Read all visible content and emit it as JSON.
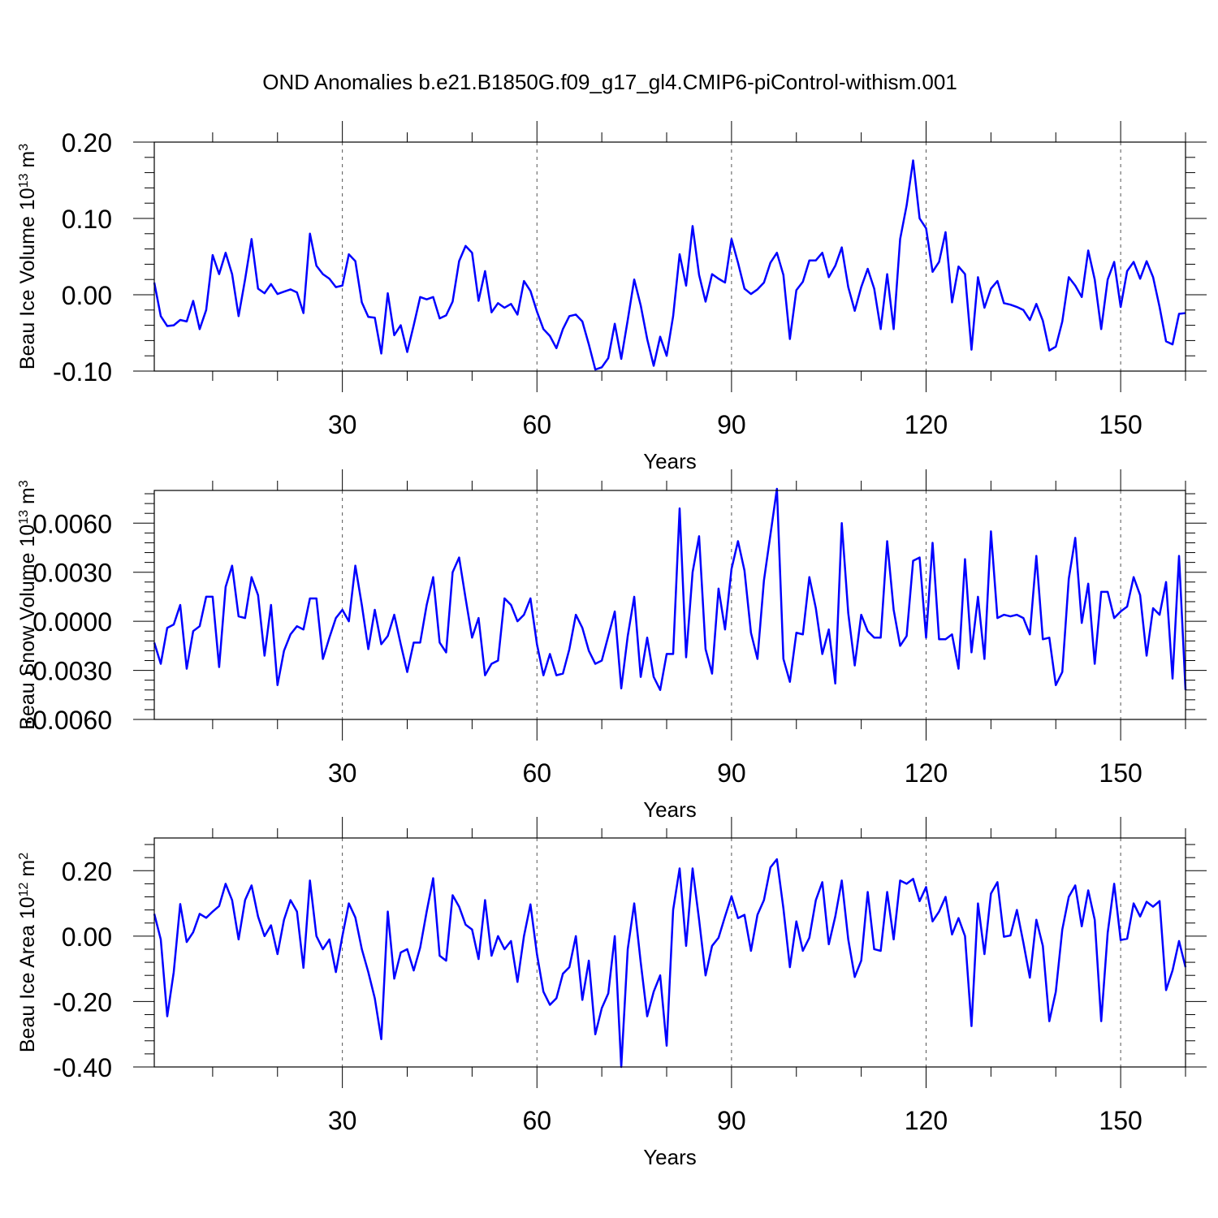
{
  "title": "OND Anomalies b.e21.B1850G.f09_g17_gl4.CMIP6-piControl-withism.001",
  "line_color": "#0000ff",
  "chart_data": [
    {
      "type": "line",
      "ylabel": "Beau Ice Volume 10",
      "ylabel_sup": "13",
      "ylabel_unit": "m",
      "ylabel_unit_sup": "3",
      "xlabel": "Years",
      "xticks": [
        30,
        60,
        90,
        120,
        150
      ],
      "xtick_labels": [
        "30",
        "60",
        "90",
        "120",
        "150"
      ],
      "xlim": [
        1,
        160
      ],
      "ylim": [
        -0.1,
        0.2
      ],
      "yticks": [
        -0.1,
        0.0,
        0.1,
        0.2
      ],
      "ytick_labels": [
        "-0.10",
        "0.00",
        "0.10",
        "0.20"
      ],
      "grid": "vertical dashed at major x ticks",
      "x_start": 1,
      "series": [
        {
          "values": [
            0.016,
            -0.028,
            -0.041,
            -0.04,
            -0.033,
            -0.035,
            -0.008,
            -0.045,
            -0.02,
            0.052,
            0.027,
            0.055,
            0.027,
            -0.028,
            0.02,
            0.073,
            0.008,
            0.002,
            0.014,
            0.001,
            0.004,
            0.007,
            0.003,
            -0.024,
            0.08,
            0.038,
            0.027,
            0.021,
            0.01,
            0.012,
            0.053,
            0.044,
            -0.01,
            -0.029,
            -0.03,
            -0.077,
            0.002,
            -0.053,
            -0.04,
            -0.075,
            -0.04,
            -0.003,
            -0.006,
            -0.003,
            -0.031,
            -0.027,
            -0.009,
            0.044,
            0.064,
            0.055,
            -0.008,
            0.031,
            -0.023,
            -0.011,
            -0.017,
            -0.012,
            -0.026,
            0.018,
            0.005,
            -0.022,
            -0.045,
            -0.054,
            -0.07,
            -0.045,
            -0.028,
            -0.026,
            -0.035,
            -0.065,
            -0.098,
            -0.095,
            -0.083,
            -0.038,
            -0.084,
            -0.033,
            0.02,
            -0.014,
            -0.058,
            -0.093,
            -0.055,
            -0.08,
            -0.028,
            0.053,
            0.012,
            0.09,
            0.026,
            -0.009,
            0.027,
            0.021,
            0.016,
            0.073,
            0.042,
            0.008,
            0.001,
            0.007,
            0.016,
            0.042,
            0.055,
            0.026,
            -0.058,
            0.006,
            0.017,
            0.045,
            0.045,
            0.055,
            0.023,
            0.038,
            0.062,
            0.01,
            -0.021,
            0.01,
            0.034,
            0.008,
            -0.045,
            0.027,
            -0.045,
            0.073,
            0.117,
            0.176,
            0.1,
            0.087,
            0.03,
            0.043,
            0.082,
            -0.01,
            0.037,
            0.027,
            -0.072,
            0.023,
            -0.017,
            0.008,
            0.018,
            -0.011,
            -0.013,
            -0.016,
            -0.02,
            -0.033,
            -0.012,
            -0.034,
            -0.073,
            -0.068,
            -0.035,
            0.023,
            0.012,
            -0.003,
            0.058,
            0.02,
            -0.045,
            0.02,
            0.043,
            -0.016,
            0.031,
            0.043,
            0.021,
            0.044,
            0.023,
            -0.016,
            -0.061,
            -0.065,
            -0.025,
            -0.024
          ]
        }
      ]
    },
    {
      "type": "line",
      "ylabel": "Beau Snow Volume 10",
      "ylabel_sup": "13",
      "ylabel_unit": "m",
      "ylabel_unit_sup": "3",
      "xlabel": "Years",
      "xticks": [
        30,
        60,
        90,
        120,
        150
      ],
      "xtick_labels": [
        "30",
        "60",
        "90",
        "120",
        "150"
      ],
      "xlim": [
        1,
        160
      ],
      "ylim": [
        -0.006,
        0.008
      ],
      "yticks": [
        -0.006,
        -0.003,
        0.0,
        0.003,
        0.006
      ],
      "ytick_labels": [
        "-0.0060",
        "-0.0030",
        "0.0000",
        "0.0030",
        "0.0060"
      ],
      "grid": "vertical dashed at major x ticks",
      "x_start": 1,
      "series": [
        {
          "values": [
            -0.0013,
            -0.0026,
            -0.0004,
            -0.0002,
            0.001,
            -0.0029,
            -0.0006,
            -0.0003,
            0.0015,
            0.0015,
            -0.0028,
            0.0021,
            0.0034,
            0.0003,
            0.0002,
            0.0027,
            0.0016,
            -0.0021,
            0.001,
            -0.0039,
            -0.0018,
            -0.0008,
            -0.0003,
            -0.0005,
            0.0014,
            0.0014,
            -0.0023,
            -0.001,
            0.0002,
            0.0007,
            0.0,
            0.0034,
            0.001,
            -0.0017,
            0.0007,
            -0.0014,
            -0.0009,
            0.0004,
            -0.0014,
            -0.0031,
            -0.0013,
            -0.0013,
            0.001,
            0.0027,
            -0.0013,
            -0.0019,
            0.003,
            0.0039,
            0.0014,
            -0.001,
            0.0002,
            -0.0033,
            -0.0026,
            -0.0024,
            0.0014,
            0.001,
            0.0,
            0.0004,
            0.0014,
            -0.0014,
            -0.0033,
            -0.002,
            -0.0033,
            -0.0032,
            -0.0017,
            0.0004,
            -0.0004,
            -0.0018,
            -0.0026,
            -0.0024,
            -0.0009,
            0.0006,
            -0.0041,
            -0.0009,
            0.0015,
            -0.0034,
            -0.001,
            -0.0034,
            -0.0042,
            -0.002,
            -0.002,
            0.0069,
            -0.0022,
            0.003,
            0.0052,
            -0.0017,
            -0.0032,
            0.002,
            -0.0005,
            0.0032,
            0.0049,
            0.0031,
            -0.0007,
            -0.0023,
            0.0025,
            0.0053,
            0.0081,
            -0.0023,
            -0.0037,
            -0.0007,
            -0.0008,
            0.0027,
            0.0008,
            -0.002,
            -0.0005,
            -0.0038,
            0.006,
            0.0005,
            -0.0027,
            0.0004,
            -0.0006,
            -0.001,
            -0.001,
            0.0049,
            0.0007,
            -0.0015,
            -0.0009,
            0.0037,
            0.0039,
            -0.001,
            0.0048,
            -0.0011,
            -0.0011,
            -0.0008,
            -0.0029,
            0.0038,
            -0.0019,
            0.0015,
            -0.0023,
            0.0055,
            0.0002,
            0.0004,
            0.0003,
            0.0004,
            0.0002,
            -0.0008,
            0.004,
            -0.0011,
            -0.001,
            -0.0039,
            -0.0031,
            0.0026,
            0.0051,
            -0.0001,
            0.0023,
            -0.0026,
            0.0018,
            0.0018,
            0.0002,
            0.0006,
            0.0009,
            0.0027,
            0.0016,
            -0.0021,
            0.0008,
            0.0004,
            0.0024,
            -0.0035,
            0.004,
            -0.0042
          ]
        }
      ]
    },
    {
      "type": "line",
      "ylabel": "Beau Ice Area 10",
      "ylabel_sup": "12",
      "ylabel_unit": "m",
      "ylabel_unit_sup": "2",
      "xlabel": "Years",
      "xticks": [
        30,
        60,
        90,
        120,
        150
      ],
      "xtick_labels": [
        "30",
        "60",
        "90",
        "120",
        "150"
      ],
      "xlim": [
        1,
        160
      ],
      "ylim": [
        -0.4,
        0.3
      ],
      "yticks": [
        -0.4,
        -0.2,
        0.0,
        0.2
      ],
      "ytick_labels": [
        "-0.40",
        "-0.20",
        "0.00",
        "0.20"
      ],
      "grid": "vertical dashed at major x ticks",
      "x_start": 1,
      "series": [
        {
          "values": [
            0.068,
            -0.01,
            -0.245,
            -0.11,
            0.098,
            -0.018,
            0.012,
            0.068,
            0.056,
            0.075,
            0.092,
            0.16,
            0.11,
            -0.01,
            0.11,
            0.155,
            0.06,
            0.0,
            0.033,
            -0.055,
            0.05,
            0.11,
            0.075,
            -0.097,
            0.17,
            0.0,
            -0.04,
            -0.01,
            -0.11,
            0.0,
            0.1,
            0.057,
            -0.04,
            -0.11,
            -0.19,
            -0.315,
            0.075,
            -0.13,
            -0.05,
            -0.04,
            -0.105,
            -0.035,
            0.075,
            0.177,
            -0.06,
            -0.075,
            0.125,
            0.09,
            0.035,
            0.02,
            -0.07,
            0.11,
            -0.06,
            0.0,
            -0.04,
            -0.015,
            -0.14,
            0.0,
            0.097,
            -0.055,
            -0.17,
            -0.21,
            -0.19,
            -0.115,
            -0.095,
            0.0,
            -0.195,
            -0.075,
            -0.3,
            -0.22,
            -0.175,
            0.0,
            -0.4,
            -0.04,
            0.1,
            -0.08,
            -0.245,
            -0.17,
            -0.12,
            -0.335,
            0.08,
            0.207,
            -0.03,
            0.207,
            0.05,
            -0.12,
            -0.03,
            -0.005,
            0.06,
            0.122,
            0.055,
            0.065,
            -0.045,
            0.065,
            0.11,
            0.21,
            0.235,
            0.085,
            -0.095,
            0.045,
            -0.045,
            -0.005,
            0.11,
            0.165,
            -0.025,
            0.06,
            0.17,
            -0.01,
            -0.125,
            -0.075,
            0.135,
            -0.04,
            -0.045,
            0.135,
            -0.01,
            0.17,
            0.16,
            0.175,
            0.107,
            0.15,
            0.045,
            0.075,
            0.12,
            0.005,
            0.055,
            0.0,
            -0.275,
            0.1,
            -0.055,
            0.13,
            0.165,
            -0.002,
            0.002,
            0.08,
            -0.02,
            -0.127,
            0.05,
            -0.03,
            -0.26,
            -0.17,
            0.02,
            0.12,
            0.155,
            0.03,
            0.14,
            0.05,
            -0.26,
            0.01,
            0.16,
            -0.012,
            -0.008,
            0.1,
            0.06,
            0.105,
            0.09,
            0.107,
            -0.165,
            -0.105,
            -0.015,
            -0.095
          ]
        }
      ]
    }
  ]
}
